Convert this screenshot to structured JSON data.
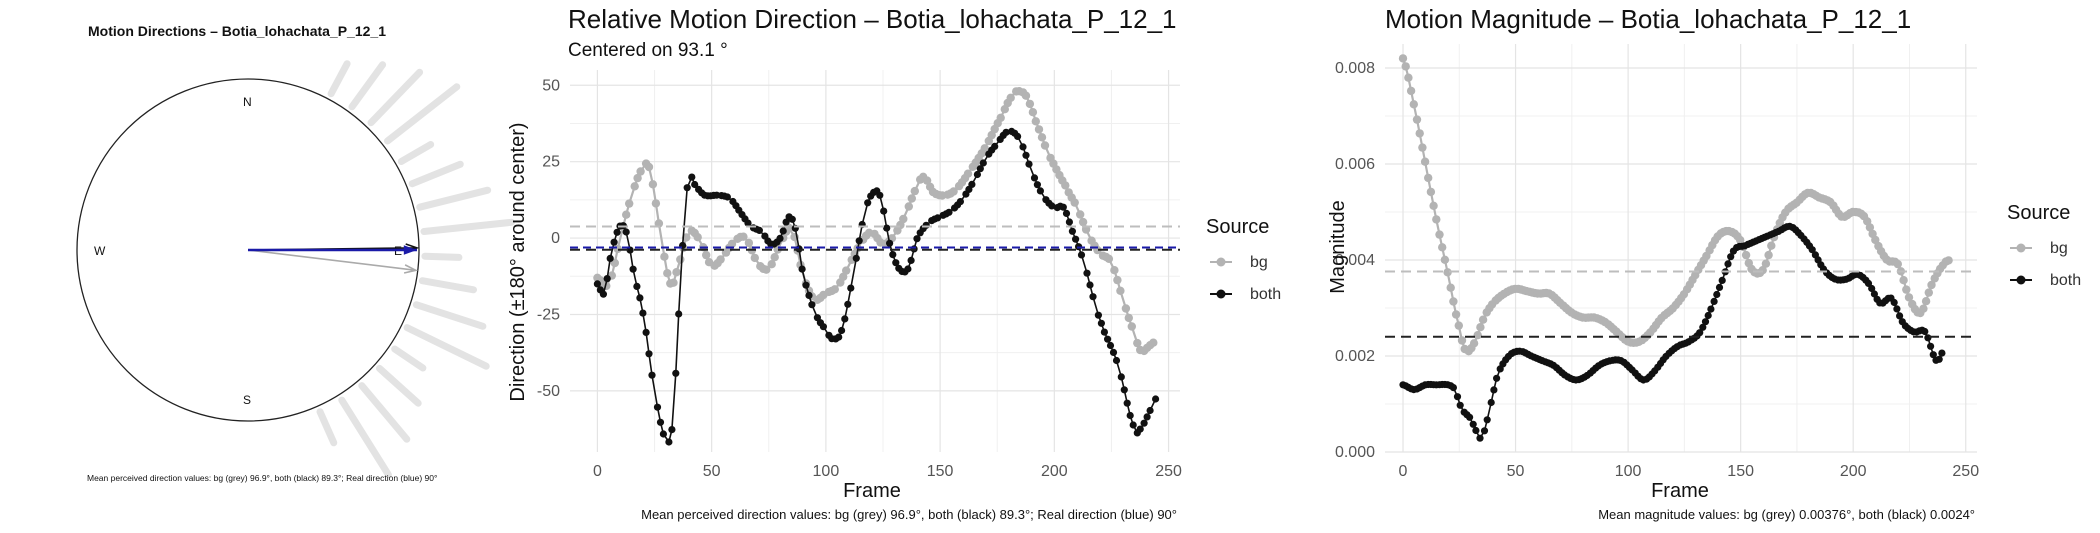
{
  "chart_data": [
    {
      "type": "polar",
      "title": "Motion Directions – Botia_lohachata_P_12_1",
      "compass_labels": {
        "N": "N",
        "E": "E",
        "S": "S",
        "W": "W"
      },
      "arrows": [
        {
          "name": "bg",
          "angle_deg": 96.9,
          "color": "#aaaaaa"
        },
        {
          "name": "both",
          "angle_deg": 89.3,
          "color": "#111111"
        },
        {
          "name": "Real direction",
          "angle_deg": 90,
          "color": "#1a1aa8"
        }
      ],
      "caption": "Mean perceived direction values: bg (grey) 96.9°, both (black) 89.3°; Real direction (blue) 90°"
    },
    {
      "type": "line",
      "title": "Relative Motion Direction – Botia_lohachata_P_12_1",
      "subtitle": "Centered on  93.1 °",
      "xlabel": "Frame",
      "ylabel": "Direction (±180° around center)",
      "xlim": [
        -12,
        255
      ],
      "ylim": [
        -70,
        55
      ],
      "xticks": [
        0,
        50,
        100,
        150,
        200,
        250
      ],
      "yticks": [
        -50,
        -25,
        0,
        25,
        50
      ],
      "legend_title": "Source",
      "grid": true,
      "series": [
        {
          "name": "bg",
          "color": "#b3b3b3",
          "knots": [
            [
              0,
              -13
            ],
            [
              5,
              -15
            ],
            [
              10,
              0
            ],
            [
              15,
              14
            ],
            [
              20,
              23
            ],
            [
              23,
              22
            ],
            [
              28,
              0
            ],
            [
              32,
              -15
            ],
            [
              35,
              -10
            ],
            [
              40,
              2
            ],
            [
              45,
              -1
            ],
            [
              50,
              -9
            ],
            [
              55,
              -6
            ],
            [
              60,
              -1
            ],
            [
              65,
              0
            ],
            [
              70,
              -8
            ],
            [
              75,
              -10
            ],
            [
              80,
              -2
            ],
            [
              85,
              3
            ],
            [
              90,
              -12
            ],
            [
              95,
              -20
            ],
            [
              100,
              -18
            ],
            [
              105,
              -16
            ],
            [
              110,
              -9
            ],
            [
              115,
              -2
            ],
            [
              120,
              2
            ],
            [
              125,
              -2
            ],
            [
              130,
              1
            ],
            [
              135,
              8
            ],
            [
              140,
              17
            ],
            [
              143,
              20
            ],
            [
              147,
              15
            ],
            [
              152,
              14
            ],
            [
              157,
              16
            ],
            [
              163,
              22
            ],
            [
              170,
              30
            ],
            [
              177,
              40
            ],
            [
              182,
              47
            ],
            [
              185,
              48
            ],
            [
              188,
              46
            ],
            [
              192,
              38
            ],
            [
              197,
              28
            ],
            [
              205,
              17
            ],
            [
              210,
              10
            ],
            [
              215,
              1
            ],
            [
              220,
              -5
            ],
            [
              225,
              -8
            ],
            [
              230,
              -20
            ],
            [
              235,
              -31
            ],
            [
              238,
              -37
            ],
            [
              242,
              -35
            ],
            [
              244,
              -34
            ]
          ],
          "mean": 3.8
        },
        {
          "name": "both",
          "color": "#111111",
          "knots": [
            [
              0,
              -15
            ],
            [
              3,
              -18
            ],
            [
              6,
              -5
            ],
            [
              10,
              4
            ],
            [
              13,
              1
            ],
            [
              16,
              -12
            ],
            [
              20,
              -25
            ],
            [
              25,
              -50
            ],
            [
              30,
              -66
            ],
            [
              33,
              -60
            ],
            [
              36,
              -20
            ],
            [
              38,
              5
            ],
            [
              40,
              20
            ],
            [
              43,
              17
            ],
            [
              47,
              14
            ],
            [
              53,
              14
            ],
            [
              58,
              13
            ],
            [
              62,
              9
            ],
            [
              67,
              4
            ],
            [
              72,
              2
            ],
            [
              76,
              -2
            ],
            [
              80,
              0
            ],
            [
              84,
              7
            ],
            [
              87,
              2
            ],
            [
              90,
              -12
            ],
            [
              95,
              -24
            ],
            [
              100,
              -30
            ],
            [
              103,
              -33
            ],
            [
              107,
              -30
            ],
            [
              112,
              -12
            ],
            [
              117,
              8
            ],
            [
              121,
              15
            ],
            [
              124,
              13
            ],
            [
              128,
              -2
            ],
            [
              132,
              -10
            ],
            [
              136,
              -10
            ],
            [
              140,
              0
            ],
            [
              145,
              5
            ],
            [
              150,
              7
            ],
            [
              155,
              9
            ],
            [
              160,
              13
            ],
            [
              165,
              19
            ],
            [
              170,
              26
            ],
            [
              175,
              31
            ],
            [
              180,
              35
            ],
            [
              185,
              32
            ],
            [
              190,
              22
            ],
            [
              195,
              14
            ],
            [
              200,
              10
            ],
            [
              204,
              10
            ],
            [
              208,
              2
            ],
            [
              213,
              -8
            ],
            [
              218,
              -22
            ],
            [
              222,
              -31
            ],
            [
              228,
              -42
            ],
            [
              235,
              -62
            ],
            [
              238,
              -62
            ],
            [
              243,
              -55
            ],
            [
              245,
              -52
            ]
          ],
          "mean": -3.8
        }
      ],
      "real_direction": {
        "value": -3.1,
        "color": "#1a1aa8"
      },
      "caption": "Mean perceived direction values: bg (grey) 96.9°, both (black) 89.3°; Real direction (blue) 90°"
    },
    {
      "type": "line",
      "title": "Motion Magnitude – Botia_lohachata_P_12_1",
      "xlabel": "Frame",
      "ylabel": "Magnitude",
      "xlim": [
        -8,
        255
      ],
      "ylim": [
        0,
        0.0085
      ],
      "xticks": [
        0,
        50,
        100,
        150,
        200,
        250
      ],
      "yticks": [
        0.0,
        0.002,
        0.004,
        0.006,
        0.008
      ],
      "ytick_labels": [
        "0.000",
        "0.002",
        "0.004",
        "0.006",
        "0.008"
      ],
      "legend_title": "Source",
      "grid": true,
      "series": [
        {
          "name": "bg",
          "color": "#b3b3b3",
          "knots": [
            [
              0,
              0.0082
            ],
            [
              5,
              0.0072
            ],
            [
              10,
              0.006
            ],
            [
              15,
              0.0048
            ],
            [
              20,
              0.0037
            ],
            [
              25,
              0.0026
            ],
            [
              28,
              0.0021
            ],
            [
              32,
              0.0023
            ],
            [
              36,
              0.0028
            ],
            [
              40,
              0.0031
            ],
            [
              45,
              0.0033
            ],
            [
              50,
              0.0034
            ],
            [
              55,
              0.00335
            ],
            [
              60,
              0.0033
            ],
            [
              65,
              0.0033
            ],
            [
              70,
              0.0031
            ],
            [
              75,
              0.0029
            ],
            [
              80,
              0.0028
            ],
            [
              85,
              0.0028
            ],
            [
              90,
              0.0027
            ],
            [
              95,
              0.0025
            ],
            [
              100,
              0.0023
            ],
            [
              105,
              0.0023
            ],
            [
              110,
              0.0025
            ],
            [
              115,
              0.0028
            ],
            [
              120,
              0.003
            ],
            [
              125,
              0.0033
            ],
            [
              130,
              0.0037
            ],
            [
              135,
              0.0041
            ],
            [
              140,
              0.0045
            ],
            [
              145,
              0.0046
            ],
            [
              150,
              0.0044
            ],
            [
              155,
              0.0038
            ],
            [
              160,
              0.0038
            ],
            [
              165,
              0.0045
            ],
            [
              170,
              0.005
            ],
            [
              175,
              0.0052
            ],
            [
              180,
              0.0054
            ],
            [
              185,
              0.0053
            ],
            [
              190,
              0.0052
            ],
            [
              195,
              0.0049
            ],
            [
              200,
              0.005
            ],
            [
              205,
              0.0049
            ],
            [
              210,
              0.0044
            ],
            [
              215,
              0.004
            ],
            [
              220,
              0.0039
            ],
            [
              225,
              0.0032
            ],
            [
              230,
              0.0029
            ],
            [
              235,
              0.0035
            ],
            [
              240,
              0.0039
            ],
            [
              243,
              0.004
            ]
          ],
          "mean": 0.00376
        },
        {
          "name": "both",
          "color": "#111111",
          "knots": [
            [
              0,
              0.0014
            ],
            [
              5,
              0.0013
            ],
            [
              10,
              0.0014
            ],
            [
              15,
              0.0014
            ],
            [
              20,
              0.0014
            ],
            [
              23,
              0.0013
            ],
            [
              26,
              0.0009
            ],
            [
              30,
              0.0007
            ],
            [
              33,
              0.0004
            ],
            [
              35,
              0.0003
            ],
            [
              38,
              0.0008
            ],
            [
              42,
              0.0016
            ],
            [
              47,
              0.002
            ],
            [
              52,
              0.0021
            ],
            [
              57,
              0.002
            ],
            [
              62,
              0.0019
            ],
            [
              67,
              0.0018
            ],
            [
              72,
              0.0016
            ],
            [
              77,
              0.0015
            ],
            [
              82,
              0.0016
            ],
            [
              87,
              0.0018
            ],
            [
              92,
              0.0019
            ],
            [
              97,
              0.0019
            ],
            [
              102,
              0.0017
            ],
            [
              107,
              0.0015
            ],
            [
              112,
              0.0017
            ],
            [
              117,
              0.002
            ],
            [
              122,
              0.0022
            ],
            [
              127,
              0.0023
            ],
            [
              132,
              0.0025
            ],
            [
              137,
              0.003
            ],
            [
              142,
              0.0036
            ],
            [
              147,
              0.0042
            ],
            [
              152,
              0.0043
            ],
            [
              157,
              0.0044
            ],
            [
              162,
              0.0045
            ],
            [
              167,
              0.0046
            ],
            [
              172,
              0.0047
            ],
            [
              177,
              0.0045
            ],
            [
              182,
              0.0042
            ],
            [
              187,
              0.0038
            ],
            [
              192,
              0.0036
            ],
            [
              197,
              0.0036
            ],
            [
              202,
              0.0037
            ],
            [
              207,
              0.0035
            ],
            [
              212,
              0.0031
            ],
            [
              217,
              0.0032
            ],
            [
              222,
              0.0027
            ],
            [
              227,
              0.0025
            ],
            [
              232,
              0.0025
            ],
            [
              237,
              0.0019
            ],
            [
              240,
              0.0021
            ]
          ],
          "mean": 0.0024
        }
      ],
      "caption": "Mean magnitude values: bg (grey) 0.00376°, both (black) 0.0024°"
    }
  ]
}
